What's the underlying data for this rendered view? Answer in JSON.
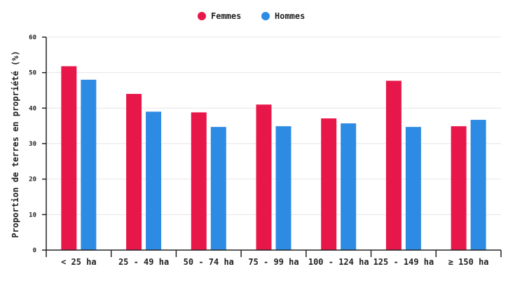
{
  "chart_data": {
    "type": "bar",
    "title": "",
    "xlabel": "",
    "ylabel": "Proportion de terres en propriété (%)",
    "ylim": [
      0,
      60
    ],
    "yticks": [
      0,
      10,
      20,
      30,
      40,
      50,
      60
    ],
    "grid": true,
    "legend_position": "top-center",
    "categories": [
      "< 25 ha",
      "25 - 49 ha",
      "50 - 74 ha",
      "75 - 99 ha",
      "100 - 124 ha",
      "125 - 149 ha",
      "≥ 150 ha"
    ],
    "series": [
      {
        "name": "Femmes",
        "color": "#e8174a",
        "values": [
          51.8,
          44.0,
          38.8,
          41.0,
          37.1,
          47.7,
          34.9
        ]
      },
      {
        "name": "Hommes",
        "color": "#2e8be3",
        "values": [
          48.0,
          39.0,
          34.7,
          34.9,
          35.7,
          34.7,
          36.7
        ]
      }
    ]
  }
}
